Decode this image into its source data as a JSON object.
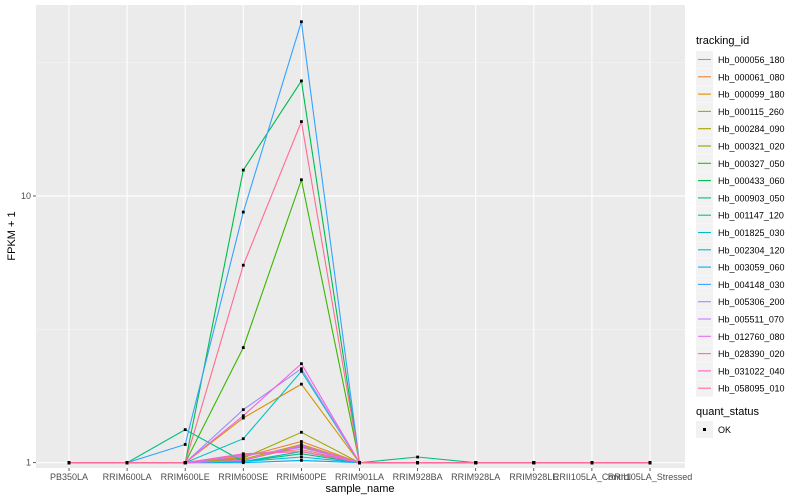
{
  "chart_data": {
    "type": "line",
    "xlabel": "sample_name",
    "ylabel": "FPKM + 1",
    "y_scale": "log10",
    "ylim": [
      0.955,
      52
    ],
    "y_ticks": [
      {
        "value": 1,
        "label": "1"
      },
      {
        "value": 10,
        "label": "10"
      }
    ],
    "grid": true,
    "background": "#ebebeb",
    "legend_position": "right",
    "legend_title": "tracking_id",
    "status_legend": {
      "title": "quant_status",
      "items": [
        "OK"
      ]
    },
    "categories": [
      "PB350LA",
      "RRIM600LA",
      "RRIM600LE",
      "RRIM600SE",
      "RRIM600PE",
      "RRIM901LA",
      "RRIM928BA",
      "RRIM928LA",
      "RRIM928LE",
      "RRII105LA_Control",
      "RRII105LA_Stressed"
    ],
    "series": [
      {
        "name": "Hb_000056_180",
        "color": "#F8766D",
        "values": [
          1,
          1,
          1,
          1.07,
          1.12,
          1,
          1,
          1,
          1,
          1,
          1
        ]
      },
      {
        "name": "Hb_000061_080",
        "color": "#EA8331",
        "values": [
          1,
          1,
          1,
          1.05,
          1.2,
          1,
          1,
          1,
          1,
          1,
          1
        ]
      },
      {
        "name": "Hb_000099_180",
        "color": "#D89000",
        "values": [
          1,
          1,
          1,
          1.47,
          1.97,
          1,
          1,
          1,
          1,
          1,
          1
        ]
      },
      {
        "name": "Hb_000115_260",
        "color": "#C09B00",
        "values": [
          1,
          1,
          1,
          1.03,
          1.17,
          1,
          1,
          1,
          1,
          1,
          1
        ]
      },
      {
        "name": "Hb_000284_090",
        "color": "#A3A500",
        "values": [
          1,
          1,
          1,
          1.04,
          1.3,
          1,
          1,
          1,
          1,
          1,
          1
        ]
      },
      {
        "name": "Hb_000321_020",
        "color": "#7CAE00",
        "values": [
          1,
          1,
          1,
          1.02,
          1.15,
          1,
          1,
          1,
          1,
          1,
          1
        ]
      },
      {
        "name": "Hb_000327_050",
        "color": "#39B600",
        "values": [
          1,
          1,
          1,
          2.7,
          11.5,
          1,
          1,
          1,
          1,
          1,
          1
        ]
      },
      {
        "name": "Hb_000433_060",
        "color": "#00BB4E",
        "values": [
          1,
          1,
          1,
          12.5,
          27,
          1,
          1,
          1,
          1,
          1,
          1
        ]
      },
      {
        "name": "Hb_000903_050",
        "color": "#00BF7D",
        "values": [
          1,
          1,
          1.33,
          1.01,
          1.08,
          1,
          1.05,
          1,
          1,
          1,
          1
        ]
      },
      {
        "name": "Hb_001147_120",
        "color": "#00C1A3",
        "values": [
          1,
          1,
          1,
          1.01,
          1.1,
          1,
          1,
          1,
          1,
          1,
          1
        ]
      },
      {
        "name": "Hb_001825_030",
        "color": "#00BFC4",
        "values": [
          1,
          1,
          1,
          1.23,
          2.2,
          1,
          1,
          1,
          1,
          1,
          1
        ]
      },
      {
        "name": "Hb_002304_120",
        "color": "#00BAE0",
        "values": [
          1,
          1,
          1,
          1.01,
          1.05,
          1,
          1,
          1,
          1,
          1,
          1
        ]
      },
      {
        "name": "Hb_003059_060",
        "color": "#00B0F6",
        "values": [
          1,
          1,
          1,
          1,
          1.02,
          1,
          1,
          1,
          1,
          1,
          1
        ]
      },
      {
        "name": "Hb_004148_030",
        "color": "#35A2FF",
        "values": [
          1,
          1,
          1.17,
          8.7,
          45,
          1,
          1,
          1,
          1,
          1,
          1
        ]
      },
      {
        "name": "Hb_005306_200",
        "color": "#9590FF",
        "values": [
          1,
          1,
          1,
          1.58,
          2.25,
          1,
          1,
          1,
          1,
          1,
          1
        ]
      },
      {
        "name": "Hb_005511_070",
        "color": "#C77CFF",
        "values": [
          1,
          1,
          1,
          1.06,
          1.14,
          1,
          1,
          1,
          1,
          1,
          1
        ]
      },
      {
        "name": "Hb_012760_080",
        "color": "#E76BF3",
        "values": [
          1,
          1,
          1,
          1.02,
          1.16,
          1,
          1,
          1,
          1,
          1,
          1
        ]
      },
      {
        "name": "Hb_028390_020",
        "color": "#FA62DB",
        "values": [
          1,
          1,
          1,
          1.5,
          2.35,
          1,
          1,
          1,
          1,
          1,
          1
        ]
      },
      {
        "name": "Hb_031022_040",
        "color": "#FF62BC",
        "values": [
          1,
          1,
          1,
          1.08,
          1.1,
          1,
          1,
          1,
          1,
          1,
          1
        ]
      },
      {
        "name": "Hb_058095_010",
        "color": "#FF6C91",
        "values": [
          1,
          1,
          1,
          5.5,
          19,
          1,
          1,
          1,
          1,
          1,
          1
        ]
      }
    ]
  }
}
